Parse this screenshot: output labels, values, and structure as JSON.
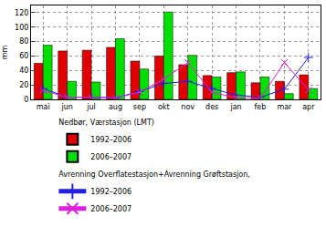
{
  "chart_data": {
    "type": "bar",
    "y_label": "mm",
    "categories": [
      "mai",
      "jun",
      "jul",
      "aug",
      "sep",
      "okt",
      "nov",
      "des",
      "jan",
      "feb",
      "mar",
      "apr"
    ],
    "series": [
      {
        "name": "1992–2006",
        "group": "Nedbør, Værstasjon (LMT)",
        "type": "bar",
        "color": "#e00000",
        "values": [
          50,
          67,
          68,
          72,
          53,
          60,
          48,
          33,
          37,
          23,
          25,
          34
        ]
      },
      {
        "name": "2006–2007",
        "group": "Nedbør, Værstasjon (LMT)",
        "type": "bar",
        "color": "#00e000",
        "values": [
          75,
          25,
          24,
          84,
          42,
          121,
          61,
          31,
          38,
          31,
          8,
          15
        ]
      },
      {
        "name": "1992–2006",
        "group": "Avrenning Overflatestasjon+Avrenning Grøftstasjon,",
        "type": "line",
        "marker": "cross",
        "color": "#2020e0",
        "values": [
          15,
          3,
          3,
          2,
          11,
          22,
          25,
          15,
          6,
          3,
          14,
          58
        ]
      },
      {
        "name": "2006–2007",
        "group": "Avrenning Overflatestasjon+Avrenning Grøftstasjon,",
        "type": "line",
        "marker": "x",
        "color": "#e020e0",
        "values": [
          12,
          3,
          3,
          2,
          10,
          28,
          51,
          10,
          2,
          1,
          51,
          13
        ]
      }
    ],
    "ylim": [
      0,
      130
    ],
    "yticks": [
      0,
      20,
      40,
      60,
      80,
      100,
      120
    ],
    "grid": true,
    "legend": "bottom"
  }
}
